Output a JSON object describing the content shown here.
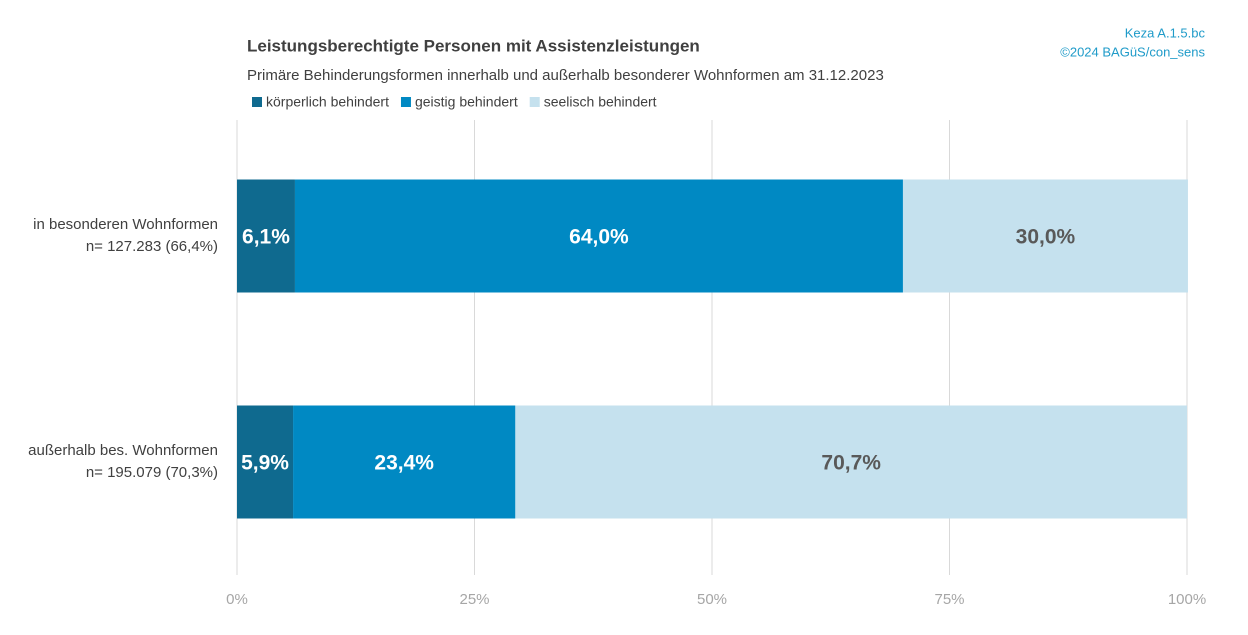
{
  "chart_data": {
    "type": "stacked-barh",
    "title": "Leistungsberechtigte Personen mit Assistenzleistungen",
    "subtitle": "Primäre Behinderungsformen innerhalb und außerhalb besonderer Wohnformen am 31.12.2023",
    "source": [
      "Keza A.1.5.bc",
      "©2024  BAGüS/con_sens"
    ],
    "categories": [
      [
        "in besonderen Wohnformen",
        "n= 127.283 (66,4%)"
      ],
      [
        "außerhalb bes. Wohnformen",
        "n= 195.079 (70,3%)"
      ]
    ],
    "series": [
      {
        "name": "körperlich behindert",
        "color": "#0f6a8f",
        "label_color": "#ffffff",
        "values": [
          6.1,
          5.9
        ],
        "value_labels": [
          "6,1%",
          "5,9%"
        ]
      },
      {
        "name": "geistig behindert",
        "color": "#0089c3",
        "label_color": "#ffffff",
        "values": [
          64.0,
          23.4
        ],
        "value_labels": [
          "64,0%",
          "23,4%"
        ]
      },
      {
        "name": "seelisch behindert",
        "color": "#c5e1ee",
        "label_color": "#595959",
        "values": [
          30.0,
          70.7
        ],
        "value_labels": [
          "30,0%",
          "70,7%"
        ]
      }
    ],
    "xlim": [
      0,
      100
    ],
    "xticks": [
      {
        "value": 0,
        "label": "0%"
      },
      {
        "value": 25,
        "label": "25%"
      },
      {
        "value": 50,
        "label": "50%"
      },
      {
        "value": 75,
        "label": "75%"
      },
      {
        "value": 100,
        "label": "100%"
      }
    ],
    "grid": true
  }
}
